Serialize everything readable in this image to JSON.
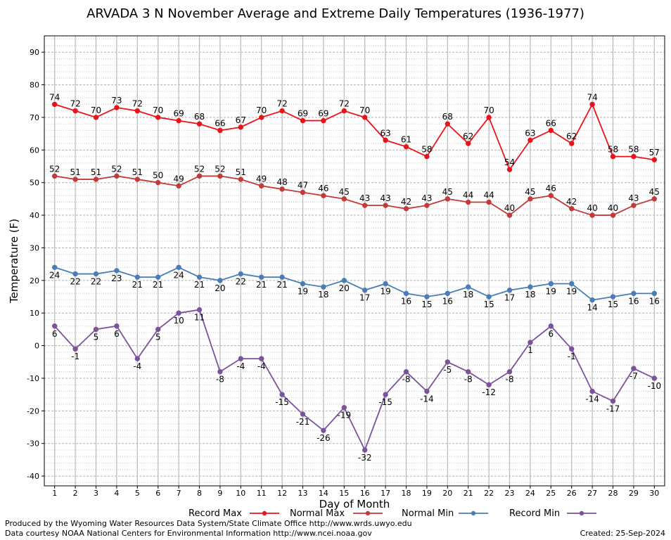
{
  "chart_data": {
    "type": "line",
    "title": "ARVADA 3 N November Average and Extreme Daily Temperatures (1936-1977)",
    "xlabel": "Day of Month",
    "ylabel": "Temperature (F)",
    "ylim": [
      -43,
      95
    ],
    "y_ticks": [
      -40,
      -30,
      -20,
      -10,
      0,
      10,
      20,
      30,
      40,
      50,
      60,
      70,
      80,
      90
    ],
    "x": [
      1,
      2,
      3,
      4,
      5,
      6,
      7,
      8,
      9,
      10,
      11,
      12,
      13,
      14,
      15,
      16,
      17,
      18,
      19,
      20,
      21,
      22,
      23,
      24,
      25,
      26,
      27,
      28,
      29,
      30
    ],
    "grid": true,
    "legend_position": "bottom",
    "series": [
      {
        "name": "Record Max",
        "color": "#e8141b",
        "label_pos": "above",
        "values": [
          74,
          72,
          70,
          73,
          72,
          70,
          69,
          68,
          66,
          67,
          70,
          72,
          69,
          69,
          72,
          70,
          63,
          61,
          58,
          68,
          62,
          70,
          54,
          63,
          66,
          62,
          74,
          58,
          58,
          57
        ]
      },
      {
        "name": "Normal Max",
        "color": "#c23a3a",
        "label_pos": "above",
        "values": [
          52,
          51,
          51,
          52,
          51,
          50,
          49,
          52,
          52,
          51,
          49,
          48,
          47,
          46,
          45,
          43,
          43,
          42,
          43,
          45,
          44,
          44,
          40,
          45,
          46,
          42,
          40,
          40,
          43,
          45
        ]
      },
      {
        "name": "Normal Min",
        "color": "#4a7db5",
        "label_pos": "below",
        "values": [
          24,
          22,
          22,
          23,
          21,
          21,
          24,
          21,
          20,
          22,
          21,
          21,
          19,
          18,
          20,
          17,
          19,
          16,
          15,
          16,
          18,
          15,
          17,
          18,
          19,
          19,
          14,
          15,
          16,
          16
        ]
      },
      {
        "name": "Record Min",
        "color": "#7a539a",
        "label_pos": "below",
        "values": [
          6,
          -1,
          5,
          6,
          -4,
          5,
          10,
          11,
          -8,
          -4,
          -4,
          -15,
          -21,
          -26,
          -19,
          -32,
          -15,
          -8,
          -14,
          -5,
          -8,
          -12,
          -8,
          1,
          6,
          -1,
          -14,
          -17,
          -7,
          -10
        ]
      }
    ]
  },
  "footer": {
    "credit_line1": "Produced by the Wyoming Water Resources Data System/State Climate Office http://www.wrds.uwyo.edu",
    "credit_line2": "Data courtesy NOAA National Centers for Environmental Information http://www.ncei.noaa.gov",
    "created": "Created:  25-Sep-2024"
  }
}
